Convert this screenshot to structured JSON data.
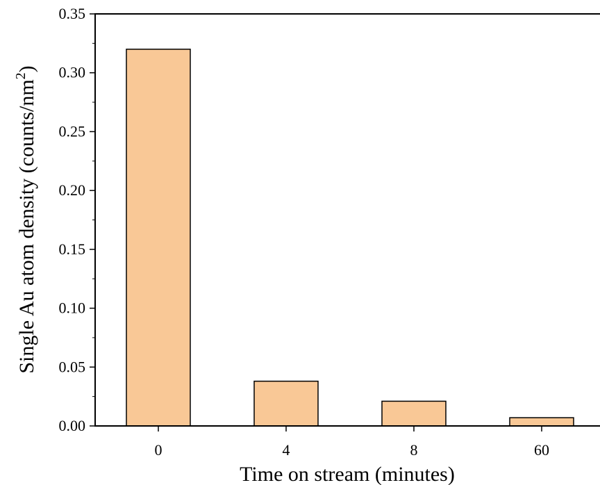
{
  "chart_data": {
    "type": "bar",
    "title": "",
    "categories": [
      "0",
      "4",
      "8",
      "60"
    ],
    "values": [
      0.32,
      0.038,
      0.021,
      0.007
    ],
    "xlabel": "Time on stream (minutes)",
    "ylabel": {
      "main": "Single Au atom density (counts/nm",
      "superscript": "2",
      "close": ")"
    },
    "ylim": [
      0,
      0.35
    ],
    "yticks": [
      "0.00",
      "0.05",
      "0.10",
      "0.15",
      "0.20",
      "0.25",
      "0.30",
      "0.35"
    ],
    "grid": false,
    "legend": "none",
    "bar_color": "#f9c896",
    "bar_edge_color": "#000000"
  }
}
